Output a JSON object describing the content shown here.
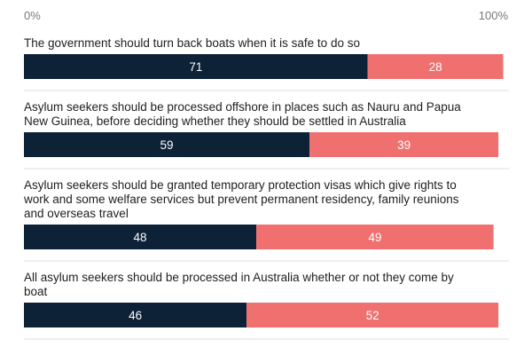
{
  "chart_data": {
    "type": "bar",
    "orientation": "horizontal",
    "stacked": true,
    "x_range": [
      0,
      100
    ],
    "tick_labels": {
      "start": "0%",
      "end": "100%"
    },
    "colors": {
      "first": "#0d2137",
      "second": "#f07070",
      "divider": "#dddddd"
    },
    "categories": [
      {
        "lines": [
          "The government should turn back boats when it is safe to do so"
        ],
        "values": [
          71,
          28
        ]
      },
      {
        "lines": [
          "Asylum seekers should be processed offshore in places such as Nauru and Papua",
          "New Guinea, before deciding whether they should be settled in Australia"
        ],
        "values": [
          59,
          39
        ]
      },
      {
        "lines": [
          "Asylum seekers should be granted temporary protection visas which give rights to",
          "work and some welfare services but prevent permanent residency, family reunions",
          "and overseas travel"
        ],
        "values": [
          48,
          49
        ]
      },
      {
        "lines": [
          "All asylum seekers should be processed in Australia whether or not they come by",
          "boat"
        ],
        "values": [
          46,
          52
        ]
      }
    ]
  }
}
